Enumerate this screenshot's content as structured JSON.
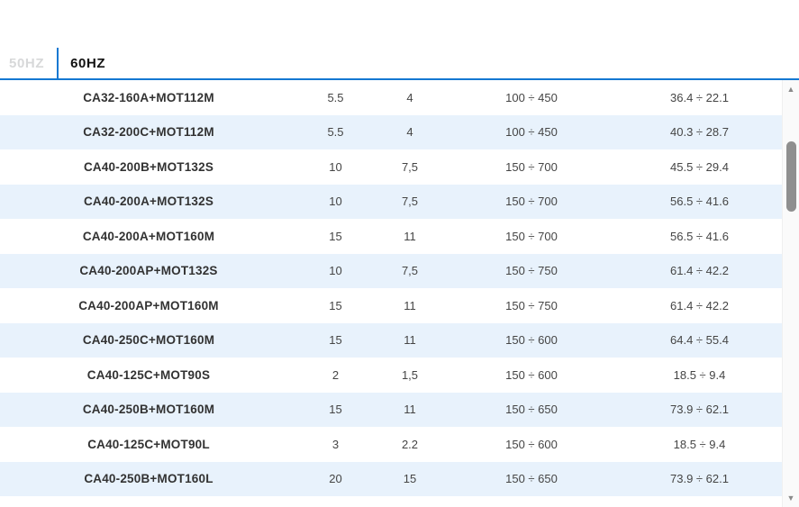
{
  "tabs": [
    {
      "label": "50HZ",
      "active": false
    },
    {
      "label": "60HZ",
      "active": true
    }
  ],
  "colors": {
    "accent_blue": "#1478d2",
    "row_alt_blue": "#e8f2fc",
    "inactive_tab_gray": "#d7d8d9",
    "scroll_thumb_gray": "#8f8f8f"
  },
  "scrollbar": {
    "up_arrow": "▲",
    "down_arrow": "▼"
  },
  "table": {
    "rows": [
      [
        "CA32-160A+MOT112M",
        "5.5",
        "4",
        "100 ÷ 450",
        "36.4 ÷ 22.1"
      ],
      [
        "CA32-200C+MOT112M",
        "5.5",
        "4",
        "100 ÷ 450",
        "40.3 ÷ 28.7"
      ],
      [
        "CA40-200B+MOT132S",
        "10",
        "7,5",
        "150 ÷ 700",
        "45.5 ÷ 29.4"
      ],
      [
        "CA40-200A+MOT132S",
        "10",
        "7,5",
        "150 ÷ 700",
        "56.5 ÷ 41.6"
      ],
      [
        "CA40-200A+MOT160M",
        "15",
        "11",
        "150 ÷ 700",
        "56.5 ÷ 41.6"
      ],
      [
        "CA40-200AP+MOT132S",
        "10",
        "7,5",
        "150 ÷ 750",
        "61.4 ÷ 42.2"
      ],
      [
        "CA40-200AP+MOT160M",
        "15",
        "11",
        "150 ÷ 750",
        "61.4 ÷ 42.2"
      ],
      [
        "CA40-250C+MOT160M",
        "15",
        "11",
        "150 ÷ 600",
        "64.4 ÷ 55.4"
      ],
      [
        "CA40-125C+MOT90S",
        "2",
        "1,5",
        "150 ÷ 600",
        "18.5 ÷ 9.4"
      ],
      [
        "CA40-250B+MOT160M",
        "15",
        "11",
        "150 ÷ 650",
        "73.9 ÷ 62.1"
      ],
      [
        "CA40-125C+MOT90L",
        "3",
        "2.2",
        "150 ÷ 600",
        "18.5 ÷ 9.4"
      ],
      [
        "CA40-250B+MOT160L",
        "20",
        "15",
        "150 ÷ 650",
        "73.9 ÷ 62.1"
      ]
    ]
  }
}
